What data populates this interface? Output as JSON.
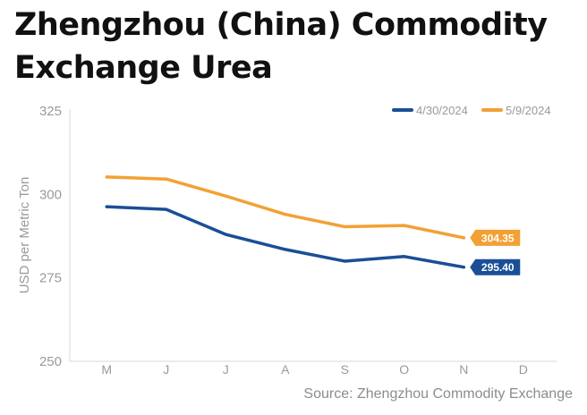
{
  "title": "Zhengzhou (China) Commodity Exchange Urea",
  "source": "Source: Zhengzhou Commodity Exchange",
  "chart_data": {
    "type": "line",
    "title": "Zhengzhou (China) Commodity Exchange Urea",
    "xlabel": "",
    "ylabel": "USD per Metric Ton",
    "categories": [
      "M",
      "J",
      "J",
      "A",
      "S",
      "O",
      "N",
      "D"
    ],
    "ylim": [
      250,
      325
    ],
    "yticks": [
      "250",
      "275",
      "300",
      "325"
    ],
    "grid": false,
    "legend_position": "top-right",
    "series": [
      {
        "name": "4/30/2024",
        "color": "#1a4f96",
        "values": [
          296.3,
          295.5,
          288.0,
          283.5,
          280.0,
          281.4,
          278.2,
          null
        ],
        "end_label": "295.40"
      },
      {
        "name": "5/9/2024",
        "color": "#f2a134",
        "values": [
          305.2,
          304.6,
          299.5,
          294.0,
          290.3,
          290.7,
          287.0,
          null
        ],
        "end_label": "304.35"
      }
    ]
  }
}
